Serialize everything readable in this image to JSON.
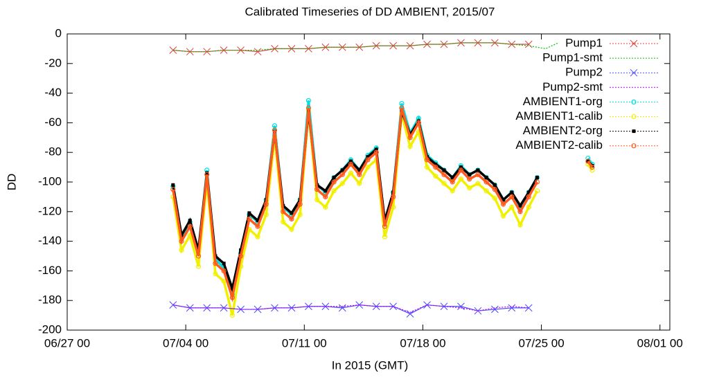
{
  "chart_data": {
    "type": "line",
    "title": "Calibrated Timeseries of DD AMBIENT, 2015/07",
    "x_label": "In 2015 (GMT)",
    "y_label": "DD",
    "xlim": [
      "06/27 00",
      "08/01 14"
    ],
    "xticks": [
      "06/27 00",
      "07/04 00",
      "07/11 00",
      "07/18 00",
      "07/25 00",
      "08/01 00"
    ],
    "ylim": [
      -200,
      0
    ],
    "yticks": [
      -200,
      -180,
      -160,
      -140,
      -120,
      -100,
      -80,
      -60,
      -40,
      -20,
      0
    ],
    "legend": "top-right",
    "x": [
      "07/03 06",
      "07/03 18",
      "07/04 06",
      "07/04 18",
      "07/05 06",
      "07/05 18",
      "07/06 06",
      "07/06 18",
      "07/07 06",
      "07/07 18",
      "07/08 06",
      "07/08 18",
      "07/09 06",
      "07/09 18",
      "07/10 06",
      "07/10 18",
      "07/11 06",
      "07/11 18",
      "07/12 06",
      "07/12 18",
      "07/13 06",
      "07/13 18",
      "07/14 06",
      "07/14 18",
      "07/15 06",
      "07/15 18",
      "07/16 06",
      "07/16 18",
      "07/17 06",
      "07/17 18",
      "07/18 06",
      "07/18 18",
      "07/19 06",
      "07/19 18",
      "07/20 06",
      "07/20 18",
      "07/21 06",
      "07/21 18",
      "07/22 06",
      "07/22 18",
      "07/23 06",
      "07/23 18",
      "07/24 06",
      "07/24 18",
      "07/26 00",
      "07/27 18",
      "07/28 00"
    ],
    "series": [
      {
        "name": "Pump1",
        "color": "#e03c3c",
        "marker": "x",
        "x": [
          "07/03 06",
          "07/04 06",
          "07/05 06",
          "07/06 06",
          "07/07 06",
          "07/08 06",
          "07/09 06",
          "07/10 06",
          "07/11 06",
          "07/12 06",
          "07/13 06",
          "07/14 06",
          "07/15 06",
          "07/16 06",
          "07/17 06",
          "07/18 06",
          "07/19 06",
          "07/20 06",
          "07/21 06",
          "07/22 06",
          "07/23 06",
          "07/24 06"
        ],
        "values": [
          -11,
          -12,
          -12,
          -11,
          -11,
          -12,
          -10,
          -10,
          -10,
          -9,
          -9,
          -9,
          -8,
          -8,
          -8,
          -7,
          -7,
          -6,
          -6,
          -6,
          -7,
          -7
        ]
      },
      {
        "name": "Pump1-smt",
        "color": "#00c000",
        "marker": "none",
        "x": [
          "07/03 06",
          "07/04 06",
          "07/05 06",
          "07/06 06",
          "07/07 06",
          "07/08 06",
          "07/09 06",
          "07/10 06",
          "07/11 06",
          "07/12 06",
          "07/13 06",
          "07/14 06",
          "07/15 06",
          "07/16 06",
          "07/17 06",
          "07/18 06",
          "07/19 06",
          "07/20 06",
          "07/21 06",
          "07/22 06",
          "07/23 06",
          "07/24 06",
          "07/25 06",
          "07/26 00"
        ],
        "values": [
          -11,
          -12,
          -12,
          -11,
          -11,
          -11,
          -10,
          -10,
          -10,
          -9,
          -9,
          -9,
          -8,
          -8,
          -8,
          -7,
          -7,
          -6,
          -6,
          -6,
          -7,
          -8,
          -10,
          -6
        ]
      },
      {
        "name": "Pump2",
        "color": "#4848ff",
        "marker": "x",
        "x": [
          "07/03 06",
          "07/04 06",
          "07/05 06",
          "07/06 06",
          "07/07 06",
          "07/08 06",
          "07/09 06",
          "07/10 06",
          "07/11 06",
          "07/12 06",
          "07/13 06",
          "07/14 06",
          "07/15 06",
          "07/16 06",
          "07/17 06",
          "07/18 06",
          "07/19 06",
          "07/20 06",
          "07/21 06",
          "07/22 06",
          "07/23 06",
          "07/24 06"
        ],
        "values": [
          -183,
          -185,
          -185,
          -185,
          -186,
          -186,
          -185,
          -185,
          -184,
          -184,
          -185,
          -183,
          -184,
          -184,
          -189,
          -183,
          -184,
          -184,
          -187,
          -186,
          -185,
          -185
        ]
      },
      {
        "name": "Pump2-smt",
        "color": "#c000ff",
        "marker": "none",
        "x": [
          "07/03 06",
          "07/04 06",
          "07/05 06",
          "07/06 06",
          "07/07 06",
          "07/08 06",
          "07/09 06",
          "07/10 06",
          "07/11 06",
          "07/12 06",
          "07/13 06",
          "07/14 06",
          "07/15 06",
          "07/16 06",
          "07/17 06",
          "07/18 06",
          "07/19 06",
          "07/20 06",
          "07/21 06",
          "07/22 06",
          "07/23 06",
          "07/24 06"
        ],
        "values": [
          -183,
          -185,
          -185,
          -185,
          -186,
          -186,
          -185,
          -185,
          -184,
          -184,
          -184,
          -183,
          -184,
          -184,
          -188,
          -183,
          -184,
          -185,
          -187,
          -185,
          -184,
          -185
        ]
      },
      {
        "name": "AMBIENT1-org",
        "color": "#00e0e0",
        "marker": "circle",
        "values": [
          -103,
          -138,
          -127,
          -148,
          -92,
          -152,
          -158,
          -176,
          -148,
          -122,
          -127,
          -112,
          -62,
          -117,
          -122,
          -112,
          -45,
          -102,
          -107,
          -97,
          -92,
          -85,
          -92,
          -82,
          -77,
          -127,
          -107,
          -47,
          -67,
          -57,
          -82,
          -87,
          -92,
          -97,
          -89,
          -95,
          -92,
          -97,
          -102,
          -112,
          -107,
          -117,
          -107,
          -97,
          null,
          -84,
          -88
        ]
      },
      {
        "name": "AMBIENT1-calib",
        "color": "#f0f000",
        "marker": "circle",
        "values": [
          -110,
          -146,
          -136,
          -157,
          -100,
          -162,
          -167,
          -190,
          -157,
          -132,
          -137,
          -122,
          -70,
          -127,
          -132,
          -122,
          -52,
          -112,
          -117,
          -106,
          -101,
          -94,
          -101,
          -90,
          -85,
          -137,
          -117,
          -54,
          -76,
          -66,
          -90,
          -96,
          -101,
          -106,
          -98,
          -104,
          -101,
          -106,
          -111,
          -123,
          -117,
          -129,
          -117,
          -106,
          null,
          -88,
          -92
        ]
      },
      {
        "name": "AMBIENT2-org",
        "color": "#000000",
        "marker": "square",
        "values": [
          -102,
          -136,
          -126,
          -146,
          -94,
          -150,
          -155,
          -172,
          -146,
          -121,
          -126,
          -112,
          -66,
          -116,
          -121,
          -112,
          -52,
          -102,
          -106,
          -97,
          -92,
          -86,
          -92,
          -83,
          -78,
          -126,
          -107,
          -52,
          -68,
          -59,
          -83,
          -88,
          -92,
          -97,
          -90,
          -95,
          -92,
          -97,
          -102,
          -112,
          -107,
          -116,
          -107,
          -97,
          null,
          -86,
          -89
        ]
      },
      {
        "name": "AMBIENT2-calib",
        "color": "#ff5a1e",
        "marker": "circle",
        "values": [
          -105,
          -140,
          -130,
          -150,
          -95,
          -155,
          -160,
          -178,
          -150,
          -125,
          -130,
          -115,
          -65,
          -120,
          -125,
          -115,
          -50,
          -105,
          -110,
          -100,
          -95,
          -88,
          -95,
          -85,
          -80,
          -130,
          -110,
          -50,
          -70,
          -60,
          -85,
          -90,
          -95,
          -100,
          -92,
          -98,
          -95,
          -100,
          -105,
          -115,
          -110,
          -120,
          -110,
          -100,
          null,
          -86,
          -90
        ]
      }
    ]
  }
}
